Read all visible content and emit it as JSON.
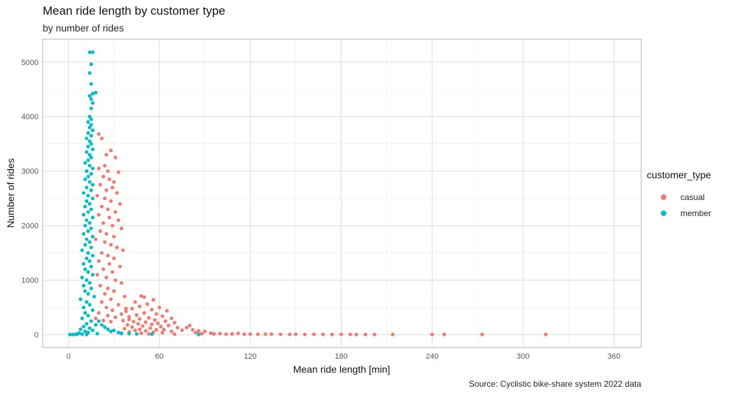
{
  "chart_data": {
    "type": "scatter",
    "title": "Mean ride length by customer type",
    "subtitle": "by number of rides",
    "caption": "Source: Cyclistic bike-share system 2022 data",
    "xlabel": "Mean ride length [min]",
    "ylabel": "Number of rides",
    "xlim": [
      -17,
      378
    ],
    "ylim": [
      -235,
      5420
    ],
    "x_ticks": [
      0,
      60,
      120,
      180,
      240,
      300,
      360
    ],
    "y_ticks": [
      0,
      1000,
      2000,
      3000,
      4000,
      5000
    ],
    "grid": true,
    "legend": {
      "title": "customer_type",
      "position": "right",
      "entries": [
        "casual",
        "member"
      ]
    },
    "colors": {
      "casual": "#F8766D",
      "member": "#00BFC4"
    },
    "series": [
      {
        "name": "casual",
        "points": [
          [
            20,
            3680
          ],
          [
            22,
            3600
          ],
          [
            28,
            3380
          ],
          [
            25,
            3300
          ],
          [
            31,
            3250
          ],
          [
            24,
            3100
          ],
          [
            20,
            3050
          ],
          [
            26,
            3000
          ],
          [
            33,
            2980
          ],
          [
            23,
            2900
          ],
          [
            27,
            2850
          ],
          [
            30,
            2800
          ],
          [
            21,
            2750
          ],
          [
            29,
            2700
          ],
          [
            25,
            2650
          ],
          [
            32,
            2600
          ],
          [
            19,
            2550
          ],
          [
            24,
            2500
          ],
          [
            28,
            2450
          ],
          [
            34,
            2400
          ],
          [
            22,
            2350
          ],
          [
            26,
            2300
          ],
          [
            31,
            2250
          ],
          [
            20,
            2200
          ],
          [
            27,
            2150
          ],
          [
            33,
            2100
          ],
          [
            23,
            2050
          ],
          [
            29,
            2000
          ],
          [
            35,
            1950
          ],
          [
            21,
            1900
          ],
          [
            25,
            1850
          ],
          [
            30,
            1800
          ],
          [
            18,
            1750
          ],
          [
            24,
            1700
          ],
          [
            28,
            1650
          ],
          [
            32,
            1600
          ],
          [
            36,
            1550
          ],
          [
            22,
            1500
          ],
          [
            26,
            1450
          ],
          [
            30,
            1400
          ],
          [
            20,
            1350
          ],
          [
            27,
            1300
          ],
          [
            34,
            1250
          ],
          [
            23,
            1200
          ],
          [
            29,
            1150
          ],
          [
            19,
            1100
          ],
          [
            25,
            1050
          ],
          [
            31,
            1000
          ],
          [
            35,
            950
          ],
          [
            21,
            900
          ],
          [
            26,
            850
          ],
          [
            30,
            800
          ],
          [
            24,
            750
          ],
          [
            37,
            700
          ],
          [
            28,
            650
          ],
          [
            22,
            600
          ],
          [
            33,
            550
          ],
          [
            25,
            500
          ],
          [
            38,
            480
          ],
          [
            29,
            450
          ],
          [
            20,
            400
          ],
          [
            35,
            380
          ],
          [
            26,
            350
          ],
          [
            31,
            320
          ],
          [
            18,
            300
          ],
          [
            40,
            280
          ],
          [
            23,
            260
          ],
          [
            28,
            240
          ],
          [
            48,
            710
          ],
          [
            50,
            690
          ],
          [
            56,
            640
          ],
          [
            44,
            600
          ],
          [
            52,
            560
          ],
          [
            47,
            520
          ],
          [
            60,
            500
          ],
          [
            42,
            480
          ],
          [
            55,
            460
          ],
          [
            65,
            440
          ],
          [
            38,
            430
          ],
          [
            50,
            400
          ],
          [
            58,
            380
          ],
          [
            45,
            360
          ],
          [
            62,
            340
          ],
          [
            40,
            330
          ],
          [
            53,
            310
          ],
          [
            68,
            300
          ],
          [
            47,
            290
          ],
          [
            57,
            270
          ],
          [
            36,
            260
          ],
          [
            64,
            250
          ],
          [
            43,
            240
          ],
          [
            51,
            230
          ],
          [
            70,
            220
          ],
          [
            59,
            210
          ],
          [
            46,
            200
          ],
          [
            55,
            190
          ],
          [
            39,
            180
          ],
          [
            66,
            170
          ],
          [
            49,
            160
          ],
          [
            61,
            150
          ],
          [
            42,
            140
          ],
          [
            72,
            130
          ],
          [
            54,
            120
          ],
          [
            37,
            110
          ],
          [
            47,
            100
          ],
          [
            63,
            95
          ],
          [
            58,
            90
          ],
          [
            75,
            85
          ],
          [
            44,
            80
          ],
          [
            51,
            70
          ],
          [
            68,
            60
          ],
          [
            40,
            50
          ],
          [
            56,
            45
          ],
          [
            62,
            40
          ],
          [
            48,
            30
          ],
          [
            35,
            20
          ],
          [
            53,
            15
          ],
          [
            70,
            10
          ],
          [
            80,
            170
          ],
          [
            78,
            130
          ],
          [
            82,
            90
          ],
          [
            86,
            70
          ],
          [
            90,
            60
          ],
          [
            84,
            40
          ],
          [
            94,
            30
          ],
          [
            88,
            20
          ],
          [
            96,
            15
          ],
          [
            100,
            20
          ],
          [
            104,
            10
          ],
          [
            108,
            15
          ],
          [
            112,
            25
          ],
          [
            116,
            10
          ],
          [
            120,
            12
          ],
          [
            125,
            8
          ],
          [
            130,
            10
          ],
          [
            134,
            12
          ],
          [
            140,
            8
          ],
          [
            146,
            6
          ],
          [
            150,
            10
          ],
          [
            156,
            5
          ],
          [
            162,
            8
          ],
          [
            168,
            6
          ],
          [
            174,
            5
          ],
          [
            180,
            8
          ],
          [
            186,
            6
          ],
          [
            190,
            5
          ],
          [
            196,
            5
          ],
          [
            202,
            5
          ],
          [
            214,
            5
          ],
          [
            240,
            5
          ],
          [
            248,
            5
          ],
          [
            273,
            5
          ],
          [
            315,
            5
          ]
        ]
      },
      {
        "name": "member",
        "points": [
          [
            14,
            5180
          ],
          [
            16,
            5180
          ],
          [
            15,
            4960
          ],
          [
            14,
            4800
          ],
          [
            15,
            4600
          ],
          [
            16,
            4420
          ],
          [
            18,
            4440
          ],
          [
            14,
            4380
          ],
          [
            15,
            4320
          ],
          [
            16,
            4250
          ],
          [
            15,
            4150
          ],
          [
            14,
            4000
          ],
          [
            15,
            3950
          ],
          [
            13,
            3900
          ],
          [
            15,
            3850
          ],
          [
            14,
            3800
          ],
          [
            16,
            3750
          ],
          [
            13,
            3700
          ],
          [
            15,
            3650
          ],
          [
            12,
            3600
          ],
          [
            14,
            3550
          ],
          [
            15,
            3500
          ],
          [
            13,
            3450
          ],
          [
            16,
            3400
          ],
          [
            12,
            3350
          ],
          [
            14,
            3300
          ],
          [
            15,
            3250
          ],
          [
            13,
            3200
          ],
          [
            11,
            3150
          ],
          [
            14,
            3100
          ],
          [
            16,
            3050
          ],
          [
            12,
            3000
          ],
          [
            15,
            2950
          ],
          [
            13,
            2900
          ],
          [
            11,
            2850
          ],
          [
            14,
            2800
          ],
          [
            16,
            2750
          ],
          [
            12,
            2700
          ],
          [
            15,
            2650
          ],
          [
            10,
            2600
          ],
          [
            13,
            2550
          ],
          [
            16,
            2500
          ],
          [
            12,
            2450
          ],
          [
            14,
            2400
          ],
          [
            11,
            2350
          ],
          [
            15,
            2300
          ],
          [
            13,
            2250
          ],
          [
            10,
            2200
          ],
          [
            16,
            2150
          ],
          [
            12,
            2100
          ],
          [
            14,
            2050
          ],
          [
            11,
            2000
          ],
          [
            15,
            1950
          ],
          [
            13,
            1900
          ],
          [
            10,
            1850
          ],
          [
            16,
            1800
          ],
          [
            12,
            1750
          ],
          [
            14,
            1700
          ],
          [
            11,
            1650
          ],
          [
            15,
            1600
          ],
          [
            9,
            1550
          ],
          [
            13,
            1500
          ],
          [
            16,
            1450
          ],
          [
            12,
            1400
          ],
          [
            14,
            1350
          ],
          [
            10,
            1300
          ],
          [
            15,
            1250
          ],
          [
            11,
            1200
          ],
          [
            13,
            1150
          ],
          [
            16,
            1100
          ],
          [
            9,
            1050
          ],
          [
            12,
            1000
          ],
          [
            14,
            950
          ],
          [
            10,
            900
          ],
          [
            15,
            850
          ],
          [
            11,
            800
          ],
          [
            13,
            750
          ],
          [
            17,
            700
          ],
          [
            8,
            650
          ],
          [
            12,
            600
          ],
          [
            14,
            550
          ],
          [
            10,
            500
          ],
          [
            16,
            450
          ],
          [
            11,
            400
          ],
          [
            13,
            350
          ],
          [
            9,
            300
          ],
          [
            15,
            250
          ],
          [
            12,
            200
          ],
          [
            18,
            180
          ],
          [
            10,
            150
          ],
          [
            14,
            120
          ],
          [
            8,
            100
          ],
          [
            16,
            80
          ],
          [
            11,
            60
          ],
          [
            13,
            40
          ],
          [
            7,
            30
          ],
          [
            19,
            20
          ],
          [
            9,
            10
          ],
          [
            12,
            5
          ],
          [
            20,
            250
          ],
          [
            22,
            180
          ],
          [
            24,
            140
          ],
          [
            26,
            100
          ],
          [
            30,
            80
          ],
          [
            28,
            60
          ],
          [
            33,
            40
          ],
          [
            6,
            15
          ],
          [
            5,
            8
          ],
          [
            3,
            5
          ],
          [
            1,
            5
          ],
          [
            35,
            30
          ],
          [
            40,
            20
          ],
          [
            45,
            15
          ],
          [
            55,
            10
          ],
          [
            86,
            5
          ]
        ]
      }
    ]
  }
}
